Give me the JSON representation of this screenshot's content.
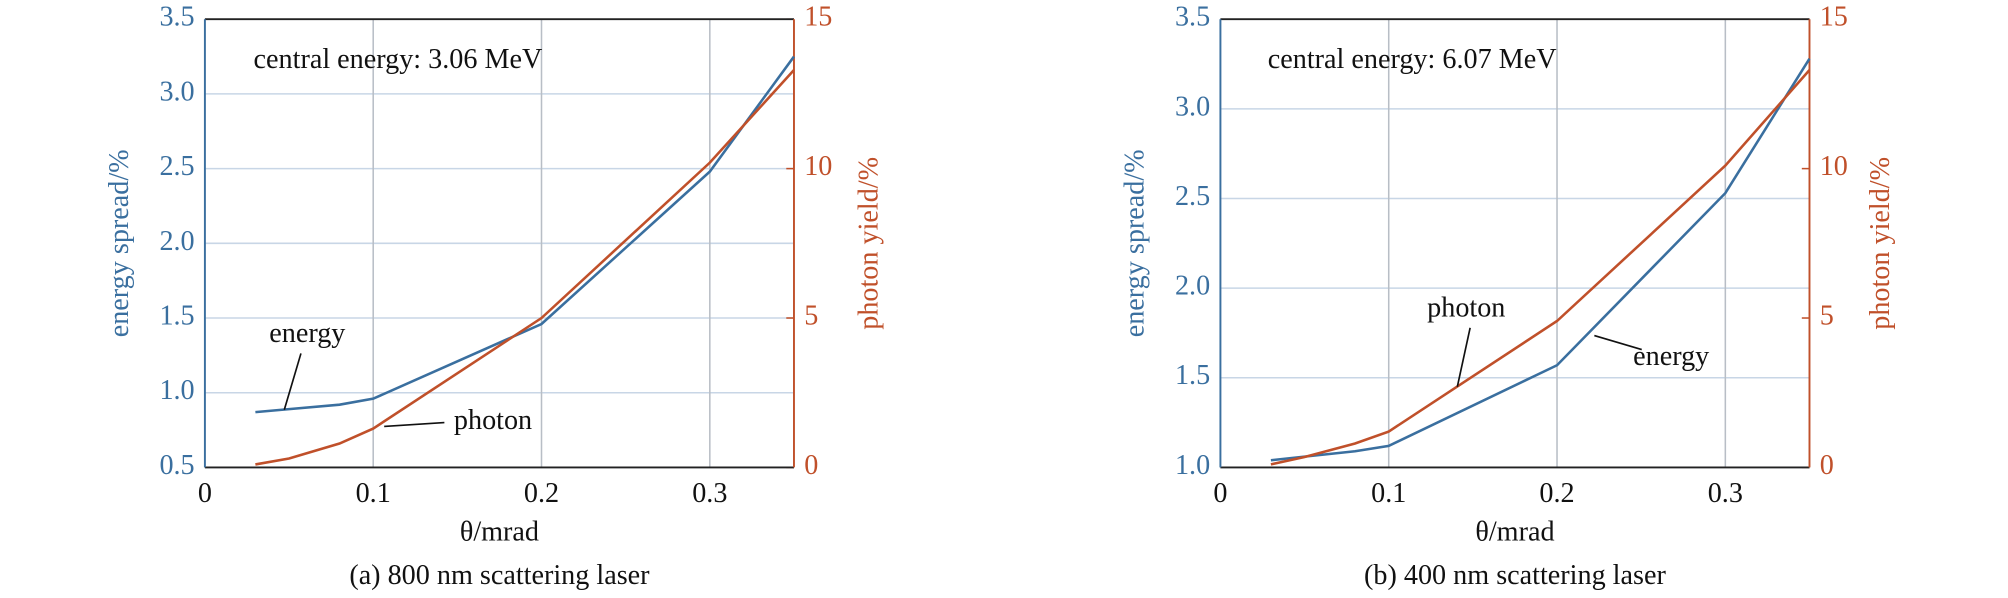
{
  "chart_data": [
    {
      "type": "line",
      "note": "central energy: 3.06 MeV",
      "xlabel": "θ/mrad",
      "ylabel": "energy spread/%",
      "y2label": "photon yield/%",
      "caption": "(a) 800 nm scattering laser",
      "x": [
        0.03,
        0.05,
        0.08,
        0.1,
        0.2,
        0.3,
        0.35
      ],
      "series": [
        {
          "name": "energy",
          "color": "#3a6f9f",
          "values": [
            0.87,
            0.89,
            0.92,
            0.96,
            1.46,
            2.48,
            3.25
          ]
        },
        {
          "name": "photon",
          "color": "#c0502a",
          "axis": "y2",
          "values": [
            0.1,
            0.3,
            0.8,
            1.3,
            5.0,
            10.2,
            13.3
          ]
        }
      ],
      "xlim": [
        0,
        0.35
      ],
      "xticks": [
        0,
        0.1,
        0.2,
        0.3
      ],
      "ylim": [
        0.5,
        3.5
      ],
      "yticks": [
        0.5,
        {
          "value": 1.0,
          "label": "1.0"
        },
        1.5,
        {
          "value": 2.0,
          "label": "2.0"
        },
        2.5,
        {
          "value": 3.0,
          "label": "3.0"
        },
        3.5
      ],
      "y2lim": [
        0,
        15
      ],
      "y2ticks": [
        0,
        5,
        10,
        15
      ],
      "grid": true
    },
    {
      "type": "line",
      "note": "central energy: 6.07 MeV",
      "xlabel": "θ/mrad",
      "ylabel": "energy spread/%",
      "y2label": "photon yield/%",
      "caption": "(b) 400 nm scattering laser",
      "x": [
        0.03,
        0.05,
        0.08,
        0.1,
        0.2,
        0.3,
        0.35
      ],
      "series": [
        {
          "name": "energy",
          "color": "#3a6f9f",
          "values": [
            1.04,
            1.06,
            1.09,
            1.12,
            1.57,
            2.53,
            3.28
          ]
        },
        {
          "name": "photon",
          "color": "#c0502a",
          "axis": "y2",
          "values": [
            0.1,
            0.35,
            0.8,
            1.2,
            4.9,
            10.1,
            13.3
          ]
        }
      ],
      "xlim": [
        0,
        0.35
      ],
      "xticks": [
        0,
        0.1,
        0.2,
        0.3
      ],
      "ylim": [
        1.0,
        3.5
      ],
      "yticks": [
        {
          "value": 1.0,
          "label": "1.0"
        },
        1.5,
        {
          "value": 2.0,
          "label": "2.0"
        },
        2.5,
        {
          "value": 3.0,
          "label": "3.0"
        },
        3.5
      ],
      "y2lim": [
        0,
        15
      ],
      "y2ticks": [
        0,
        5,
        10,
        15
      ],
      "grid": true
    }
  ]
}
